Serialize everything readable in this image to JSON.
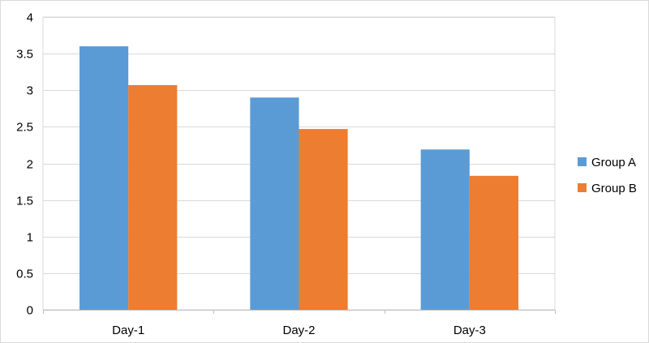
{
  "chart_data": {
    "type": "bar",
    "title": "",
    "xlabel": "",
    "ylabel": "",
    "categories": [
      "Day-1",
      "Day-2",
      "Day-3"
    ],
    "series": [
      {
        "name": "Group A",
        "values": [
          3.6,
          2.9,
          2.19
        ],
        "color": "#5b9bd5"
      },
      {
        "name": "Group B",
        "values": [
          3.07,
          2.47,
          1.83
        ],
        "color": "#ed7d31"
      }
    ],
    "ylim": [
      0,
      4
    ],
    "yticks": [
      "0",
      "0.5",
      "1",
      "1.5",
      "2",
      "2.5",
      "3",
      "3.5",
      "4"
    ],
    "grid": true,
    "legend_position": "right"
  }
}
